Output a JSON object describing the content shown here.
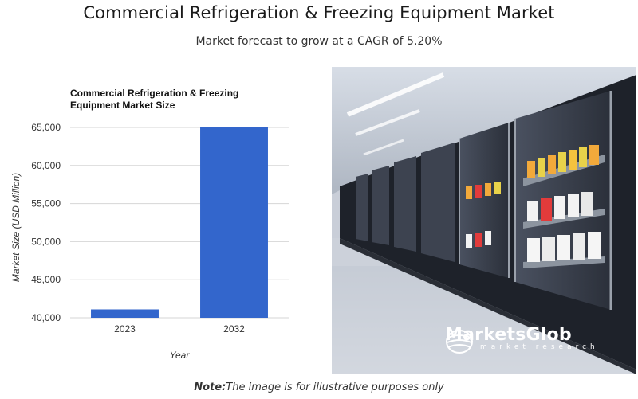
{
  "header": {
    "title": "Commercial Refrigeration & Freezing Equipment Market",
    "subtitle": "Market forecast to grow at a CAGR of 5.20%"
  },
  "chart_data": {
    "type": "bar",
    "title": "Commercial Refrigeration & Freezing Equipment Market Size",
    "title_lines": [
      "Commercial Refrigeration & Freezing",
      "Equipment Market Size"
    ],
    "categories": [
      "2023",
      "2032"
    ],
    "values": [
      41100,
      65000
    ],
    "xlabel": "Year",
    "ylabel": "Market Size (USD Million)",
    "ylim": [
      40000,
      65000
    ],
    "yticks": [
      40000,
      45000,
      50000,
      55000,
      60000,
      65000
    ],
    "ytick_labels": [
      "40,000",
      "45,000",
      "50,000",
      "55,000",
      "60,000",
      "65,000"
    ],
    "bar_color": "#3366cc",
    "grid": true,
    "legend": "none"
  },
  "image": {
    "subject": "refrigerated display cases",
    "brand_name": "MarketsGlob",
    "brand_tagline": "market research"
  },
  "footer": {
    "note_label": "Note:",
    "note_text": "The image is for illustrative purposes only"
  }
}
